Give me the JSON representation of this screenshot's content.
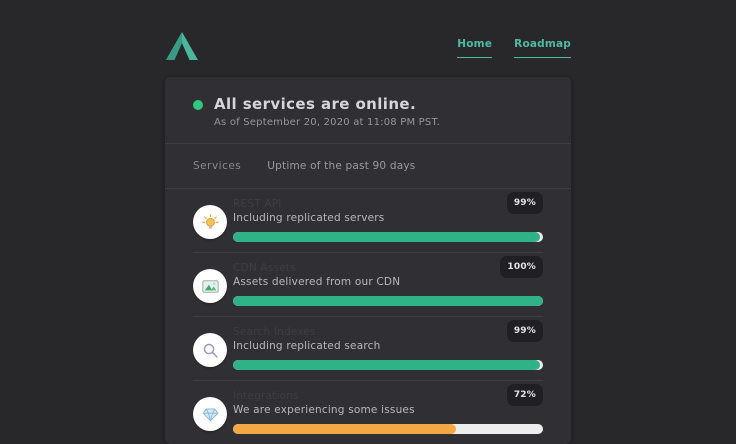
{
  "nav": {
    "links": [
      {
        "label": "Home"
      },
      {
        "label": "Roadmap"
      }
    ]
  },
  "status": {
    "headline": "All services are online.",
    "timestamp": "As of September 20, 2020 at 11:08 PM PST."
  },
  "list_header": {
    "services_label": "Services",
    "uptime_label": "Uptime of the past 90 days"
  },
  "services": [
    {
      "name": "REST API",
      "description": "Including replicated servers",
      "uptime_label": "99%",
      "uptime_percent": 99,
      "icon": "lightbulb-icon",
      "bar_color": "#2eb286"
    },
    {
      "name": "CDN Assets",
      "description": "Assets delivered from our CDN",
      "uptime_label": "100%",
      "uptime_percent": 100,
      "icon": "image-icon",
      "bar_color": "#2eb286"
    },
    {
      "name": "Search Indexes",
      "description": "Including replicated search",
      "uptime_label": "99%",
      "uptime_percent": 99,
      "icon": "search-icon",
      "bar_color": "#2eb286"
    },
    {
      "name": "Integrations",
      "description": "We are experiencing some issues",
      "uptime_label": "72%",
      "uptime_percent": 72,
      "icon": "gem-icon",
      "bar_color": "#f3a844"
    }
  ],
  "colors": {
    "accent_teal": "#4fbaa4",
    "online_dot": "#2ec97f",
    "bar_green": "#2eb286",
    "bar_orange": "#f3a844",
    "bar_track": "#ededed",
    "page_bg": "#28282b",
    "card_bg": "#303034"
  }
}
